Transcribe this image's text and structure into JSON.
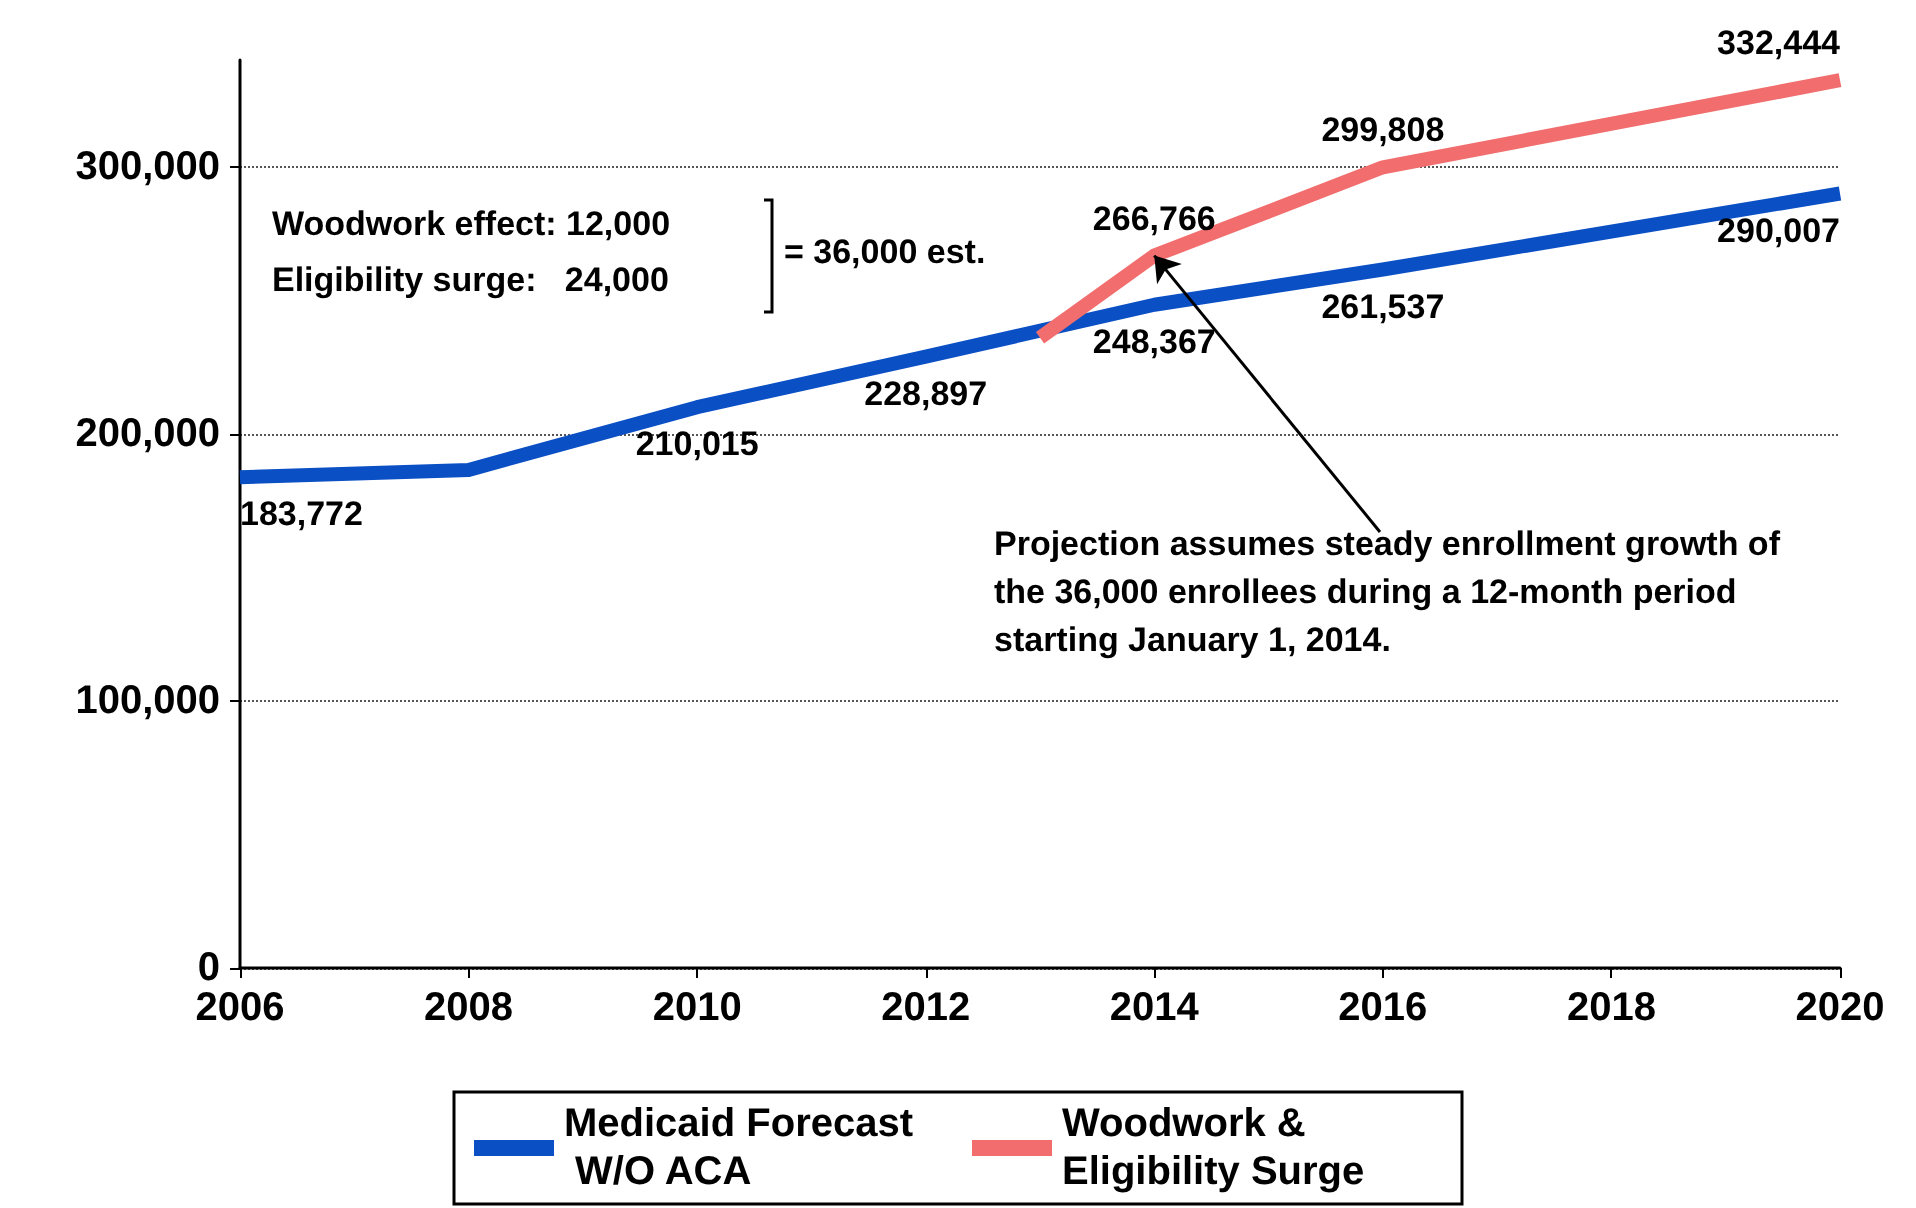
{
  "chart_data": {
    "type": "line",
    "x": [
      2006,
      2008,
      2010,
      2012,
      2014,
      2016,
      2020
    ],
    "series": [
      {
        "name": "Medicaid Forecast W/O ACA",
        "color": "#0a4fc4",
        "values": [
          183772,
          186500,
          210015,
          228897,
          248367,
          261537,
          290007
        ],
        "value_labels": [
          "183,772",
          null,
          "210,015",
          "228,897",
          "248,367",
          "261,537",
          "290,007"
        ]
      },
      {
        "name": "Woodwork & Eligibility Surge",
        "color": "#f26d6d",
        "x": [
          2013,
          2014,
          2016,
          2020
        ],
        "values": [
          236000,
          266766,
          299808,
          332444
        ],
        "value_labels": [
          null,
          "266,766",
          "299,808",
          "332,444"
        ]
      }
    ],
    "xlim": [
      2006,
      2020
    ],
    "xticks": [
      2006,
      2008,
      2010,
      2012,
      2014,
      2016,
      2018,
      2020
    ],
    "ylim": [
      0,
      340000
    ],
    "yticks": [
      0,
      {
        "value": 100000,
        "label": "100,000"
      },
      {
        "value": 200000,
        "label": "200,000"
      },
      {
        "value": 300000,
        "label": "300,000"
      }
    ],
    "grid": "y",
    "legend": "bottom",
    "marker": "none",
    "line_style": "solid",
    "annotations": [
      "Woodwork effect: 12,000",
      "Eligibility surge:   24,000",
      "= 36,000 est.",
      {
        "text": "Projection assumes steady enrollment growth of the 36,000 enrollees during a 12-month period starting January 1, 2014.",
        "x": 2014,
        "y": 266766
      }
    ]
  }
}
